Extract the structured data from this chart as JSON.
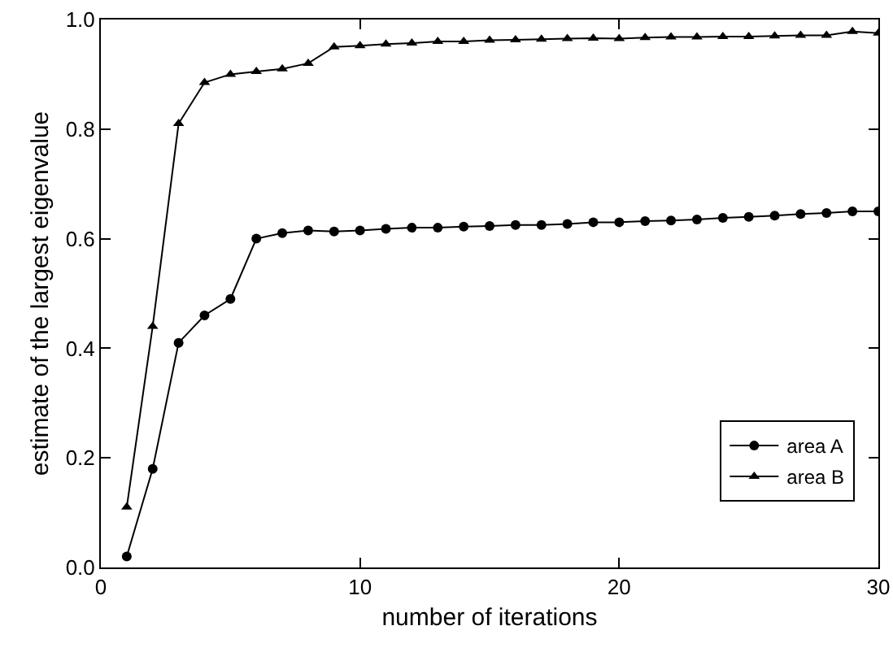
{
  "chart_data": {
    "type": "line",
    "xlabel": "number of iterations",
    "ylabel": "estimate of the largest eigenvalue",
    "x": [
      1,
      2,
      3,
      4,
      5,
      6,
      7,
      8,
      9,
      10,
      11,
      12,
      13,
      14,
      15,
      16,
      17,
      18,
      19,
      20,
      21,
      22,
      23,
      24,
      25,
      26,
      27,
      28,
      29,
      30
    ],
    "series": [
      {
        "name": "area A",
        "color": "#000000",
        "marker": "circle",
        "values": [
          0.02,
          0.18,
          0.41,
          0.46,
          0.49,
          0.6,
          0.61,
          0.615,
          0.613,
          0.615,
          0.618,
          0.62,
          0.62,
          0.622,
          0.623,
          0.625,
          0.625,
          0.627,
          0.63,
          0.63,
          0.632,
          0.633,
          0.635,
          0.638,
          0.64,
          0.642,
          0.645,
          0.647,
          0.65,
          0.65
        ]
      },
      {
        "name": "area B",
        "color": "#000000",
        "marker": "triangle",
        "values": [
          0.11,
          0.44,
          0.81,
          0.885,
          0.9,
          0.905,
          0.91,
          0.92,
          0.95,
          0.952,
          0.955,
          0.957,
          0.96,
          0.96,
          0.962,
          0.963,
          0.964,
          0.965,
          0.966,
          0.965,
          0.967,
          0.968,
          0.968,
          0.969,
          0.969,
          0.97,
          0.971,
          0.971,
          0.978,
          0.975
        ]
      }
    ],
    "xlim": [
      0,
      30
    ],
    "xticks": [
      0,
      10,
      20,
      30
    ],
    "ylim": [
      0,
      1
    ],
    "yticks": [
      {
        "value": 0,
        "label": "0.0"
      },
      {
        "value": 0.2,
        "label": "0.2"
      },
      {
        "value": 0.4,
        "label": "0.4"
      },
      {
        "value": 0.6,
        "label": "0.6"
      },
      {
        "value": 0.8,
        "label": "0.8"
      },
      {
        "value": 1,
        "label": "1.0"
      }
    ],
    "grid": false,
    "legend": "bottom right",
    "line_style": "solid"
  }
}
